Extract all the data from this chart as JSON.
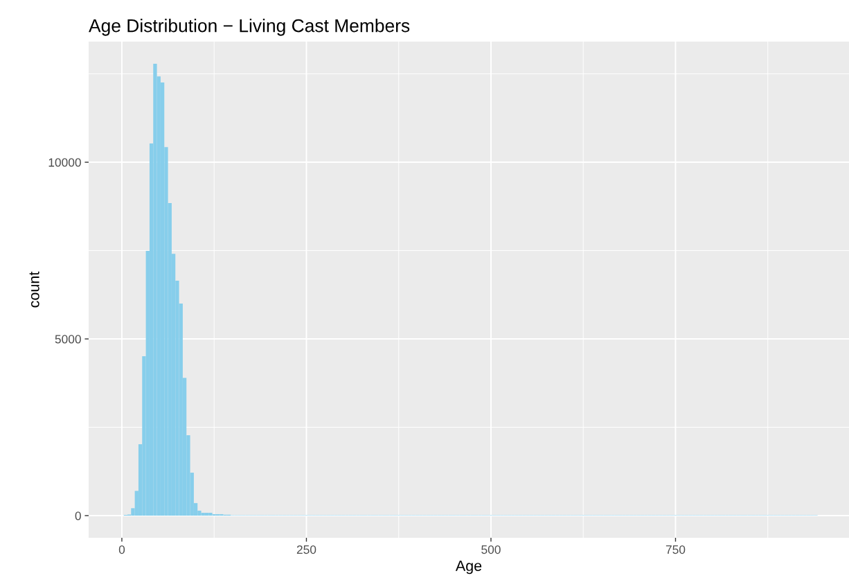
{
  "chart_data": {
    "type": "histogram",
    "title": "Age Distribution − Living Cast Members",
    "xlabel": "Age",
    "ylabel": "count",
    "color": "#87ceeb",
    "bins": [
      2.5,
      7.5,
      12.5,
      17.5,
      22.5,
      27.5,
      32.5,
      37.5,
      42.5,
      47.5,
      52.5,
      57.5,
      62.5,
      67.5,
      72.5,
      77.5,
      82.5,
      87.5,
      92.5,
      97.5,
      102.5,
      107.5,
      112.5,
      117.5,
      122.5,
      127.5,
      132.5,
      137.5,
      142.5,
      147.5,
      152.5,
      157.5,
      162.5,
      167.5,
      172.5,
      177.5,
      182.5,
      187.5,
      192.5,
      197.5,
      202.5,
      207.5,
      212.5,
      217.5,
      222.5,
      227.5,
      232.5,
      237.5,
      242.5,
      247.5,
      252.5,
      257.5,
      262.5,
      267.5,
      272.5,
      277.5,
      282.5,
      287.5,
      292.5,
      297.5,
      302.5,
      307.5,
      312.5,
      317.5,
      322.5,
      327.5,
      332.5,
      337.5,
      342.5,
      347.5,
      352.5,
      357.5,
      362.5,
      367.5,
      372.5,
      377.5,
      382.5,
      387.5,
      392.5,
      397.5,
      402.5,
      407.5,
      412.5,
      417.5,
      422.5,
      427.5,
      432.5,
      437.5,
      442.5,
      447.5,
      452.5,
      457.5,
      462.5,
      467.5,
      472.5,
      477.5,
      482.5,
      487.5,
      492.5,
      497.5,
      502.5,
      507.5,
      512.5,
      517.5,
      522.5,
      527.5,
      532.5,
      537.5,
      542.5,
      547.5,
      552.5,
      557.5,
      562.5,
      567.5,
      572.5,
      577.5,
      582.5,
      587.5,
      592.5,
      597.5,
      602.5,
      607.5,
      612.5,
      617.5,
      622.5,
      627.5,
      632.5,
      637.5,
      642.5,
      647.5,
      652.5,
      657.5,
      662.5,
      667.5,
      672.5,
      677.5,
      682.5,
      687.5,
      692.5,
      697.5,
      702.5,
      707.5,
      712.5,
      717.5,
      722.5,
      727.5,
      732.5,
      737.5,
      742.5,
      747.5,
      752.5,
      757.5,
      762.5,
      767.5,
      772.5,
      777.5,
      782.5,
      787.5,
      792.5,
      797.5,
      802.5,
      807.5,
      812.5,
      817.5,
      822.5,
      827.5,
      832.5,
      837.5,
      842.5,
      847.5,
      852.5,
      857.5,
      862.5,
      867.5,
      872.5,
      877.5,
      882.5,
      887.5,
      892.5,
      897.5,
      902.5,
      907.5,
      912.5,
      917.5,
      922.5,
      927.5,
      932.5,
      937.5,
      942.5
    ],
    "values": [
      20,
      30,
      210,
      700,
      2020,
      4510,
      7490,
      10530,
      12785,
      12430,
      12255,
      10430,
      8845,
      7410,
      6650,
      6000,
      3900,
      2275,
      1215,
      355,
      140,
      80,
      80,
      80,
      40,
      40,
      40,
      25,
      25,
      10,
      10,
      10,
      10,
      10,
      10,
      10,
      10,
      10,
      10,
      10,
      10,
      10,
      10,
      10,
      10,
      10,
      10,
      10,
      10,
      10,
      10,
      10,
      10,
      10,
      10,
      10,
      10,
      10,
      10,
      10,
      10,
      10,
      10,
      10,
      10,
      10,
      10,
      10,
      10,
      10,
      10,
      10,
      10,
      10,
      10,
      10,
      10,
      10,
      10,
      10,
      10,
      10,
      10,
      10,
      10,
      10,
      10,
      10,
      10,
      10,
      10,
      10,
      10,
      10,
      10,
      10,
      10,
      10,
      10,
      10,
      10,
      10,
      10,
      10,
      10,
      10,
      10,
      10,
      10,
      10,
      10,
      10,
      10,
      10,
      10,
      10,
      10,
      10,
      10,
      10,
      10,
      10,
      10,
      10,
      10,
      10,
      10,
      10,
      10,
      10,
      10,
      10,
      10,
      10,
      10,
      10,
      10,
      10,
      10,
      10,
      10,
      10,
      10,
      10,
      10,
      10,
      10,
      10,
      10,
      10,
      10,
      10,
      10,
      10,
      10,
      10,
      10,
      10,
      10,
      10,
      10,
      10,
      10,
      10,
      10,
      10,
      10,
      10,
      10,
      10,
      10,
      10,
      10,
      10,
      10,
      10,
      10,
      10,
      10,
      10,
      10,
      10,
      10,
      10,
      10,
      10,
      10,
      10
    ],
    "xlim": [
      -45,
      985
    ],
    "ylim": [
      -628,
      13413
    ],
    "xticks": [
      0,
      250,
      500,
      750
    ],
    "yticks": [
      0,
      5000,
      10000
    ],
    "grid": true
  }
}
